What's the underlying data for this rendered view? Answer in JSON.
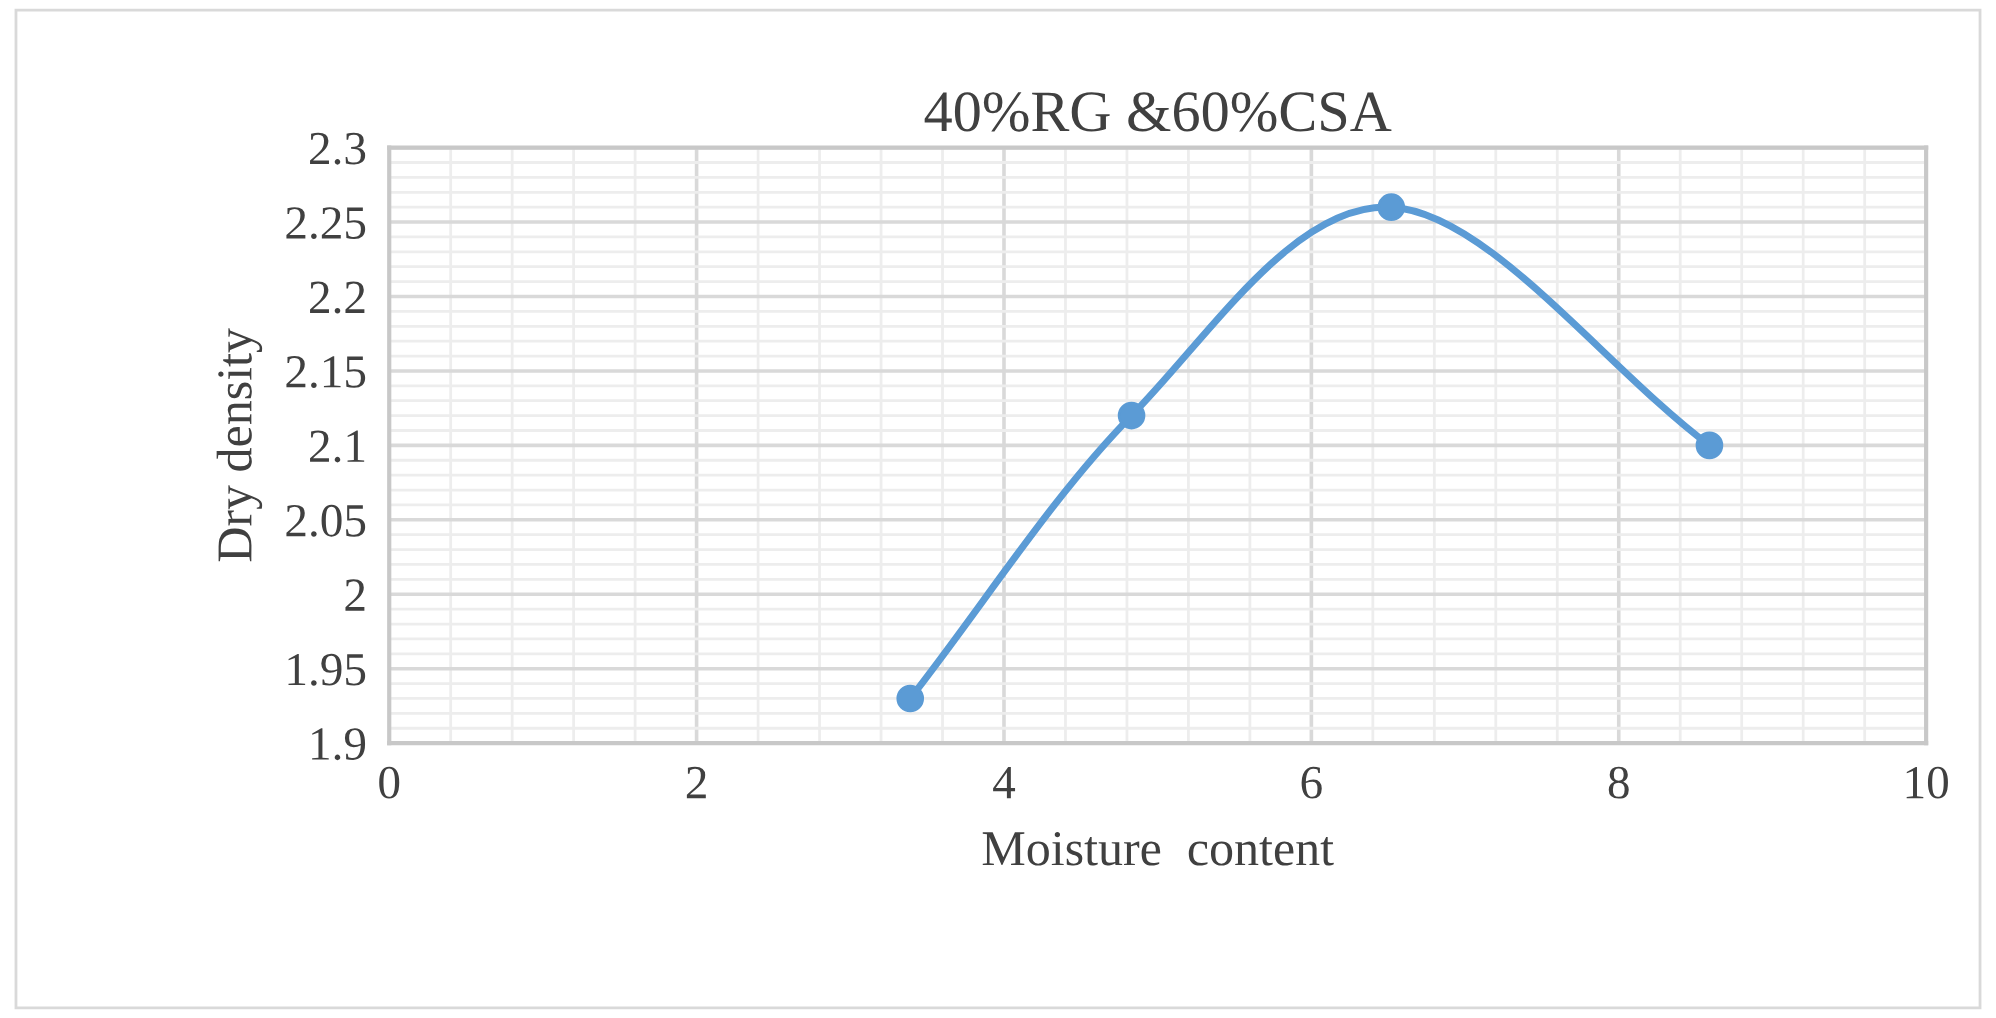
{
  "chart_data": {
    "type": "line",
    "title": "40%RG &60%CSA",
    "xlabel": "Moisture  content",
    "ylabel": "Dry density",
    "x": [
      3.39,
      4.83,
      6.52,
      8.59
    ],
    "series": [
      {
        "color": "#5b9bd5",
        "values": [
          1.93,
          2.12,
          2.26,
          2.1
        ]
      }
    ],
    "xlim": [
      0,
      10
    ],
    "xticks": [
      0,
      2,
      4,
      6,
      8,
      10
    ],
    "ylim": [
      1.9,
      2.3
    ],
    "yticks": [
      {
        "value": 1.9,
        "label": "1.9"
      },
      1.95,
      {
        "value": 2.0,
        "label": "2"
      },
      2.05,
      {
        "value": 2.1,
        "label": "2.1"
      },
      2.15,
      {
        "value": 2.2,
        "label": "2.2"
      },
      2.25,
      {
        "value": 2.3,
        "label": "2.3"
      }
    ],
    "grid": true,
    "marker": "circle",
    "line_style": "solid"
  }
}
